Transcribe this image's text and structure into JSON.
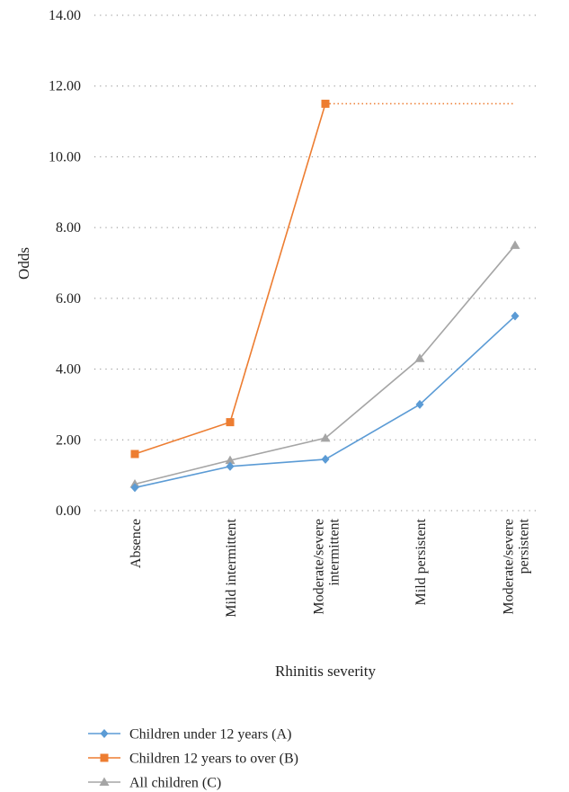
{
  "chart_data": {
    "type": "line",
    "title": "",
    "xlabel": "Rhinitis severity",
    "ylabel": "Odds",
    "ylim": [
      0,
      14
    ],
    "yticks": [
      "0.00",
      "2.00",
      "4.00",
      "6.00",
      "8.00",
      "10.00",
      "12.00",
      "14.00"
    ],
    "categories": [
      [
        "Absence"
      ],
      [
        "Mild intermittent"
      ],
      [
        "Moderate/severe",
        "intermittent"
      ],
      [
        "Mild persistent"
      ],
      [
        "Moderate/severe",
        "persistent"
      ]
    ],
    "grid": true,
    "legend_position": "bottom",
    "series": [
      {
        "name": "Children under 12 years (A)",
        "values": [
          0.65,
          1.25,
          1.45,
          3.0,
          5.5
        ],
        "color": "#5b9bd5",
        "marker": "diamond"
      },
      {
        "name": "Children 12 years to over (B)",
        "values": [
          1.6,
          2.5,
          11.5,
          null,
          null
        ],
        "color": "#ed7d31",
        "marker": "square",
        "dotted_extension_value": 11.5
      },
      {
        "name": "All children  (C)",
        "values": [
          0.75,
          1.42,
          2.05,
          4.3,
          7.5
        ],
        "color": "#a5a5a5",
        "marker": "triangle"
      }
    ]
  }
}
